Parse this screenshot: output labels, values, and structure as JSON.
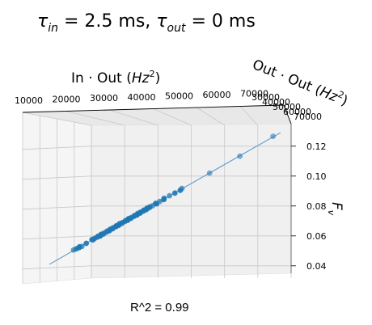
{
  "chart_data": {
    "type": "scatter",
    "title": "τin = 2.5 ms, τout = 0 ms",
    "title_parts": {
      "tau1": "τ",
      "in_sub": "in",
      "mid": " = 2.5 ms, ",
      "tau2": "τ",
      "out_sub": "out",
      "tail": " = 0 ms"
    },
    "axes": {
      "x": {
        "label_prefix": "In · Out (",
        "label_unit": "Hz",
        "label_exp": "2",
        "label_suffix": ")",
        "ticks": [
          "10000",
          "20000",
          "30000",
          "40000",
          "50000",
          "60000",
          "70000"
        ]
      },
      "y": {
        "label_prefix": "Out · Out (",
        "label_unit": "Hz",
        "label_exp": "2",
        "label_suffix": ")",
        "ticks": [
          "30000",
          "40000",
          "50000",
          "60000",
          "70000"
        ]
      },
      "z": {
        "label_main": "F",
        "label_sub": "v",
        "ticks": [
          "0.04",
          "0.06",
          "0.08",
          "0.10",
          "0.12"
        ],
        "zlim": [
          0.035,
          0.135
        ]
      }
    },
    "projection": "3d",
    "grid": true,
    "series": [
      {
        "marker_color": "#1f77b4",
        "points_z": [
          0.051,
          0.0515,
          0.052,
          0.0525,
          0.053,
          0.055,
          0.057,
          0.058,
          0.0585,
          0.059,
          0.0595,
          0.06,
          0.0605,
          0.061,
          0.0615,
          0.062,
          0.0625,
          0.063,
          0.0635,
          0.064,
          0.0645,
          0.065,
          0.0655,
          0.066,
          0.0665,
          0.067,
          0.0675,
          0.068,
          0.0685,
          0.069,
          0.0695,
          0.07,
          0.0705,
          0.071,
          0.0715,
          0.072,
          0.0725,
          0.073,
          0.0735,
          0.074,
          0.0745,
          0.075,
          0.0755,
          0.076,
          0.0765,
          0.077,
          0.0775,
          0.078,
          0.0785,
          0.079,
          0.0795,
          0.08,
          0.081,
          0.082,
          0.083,
          0.084,
          0.0855,
          0.087,
          0.0885,
          0.09,
          0.092,
          0.102,
          0.113,
          0.127
        ]
      }
    ],
    "fit_line_z": [
      0.041,
      0.129
    ],
    "annotation": "R^2 = 0.99"
  }
}
